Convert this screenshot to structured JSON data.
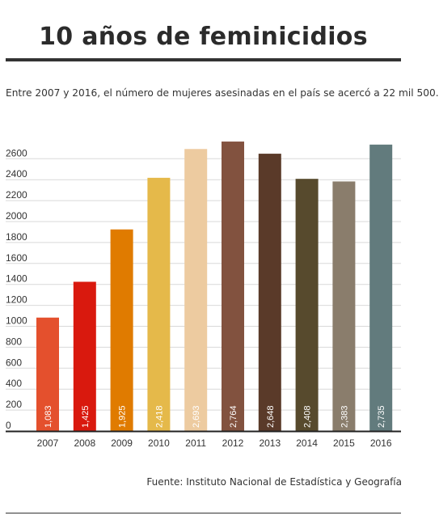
{
  "header": {
    "title": "10 años de feminicidios",
    "subtitle": "Entre 2007 y 2016, el número de mujeres asesinadas en el país se acercó a 22 mil 500."
  },
  "footer": {
    "source": "Fuente: Instituto Nacional de Estadística y Geografía"
  },
  "chart_data": {
    "type": "bar",
    "categories": [
      "2007",
      "2008",
      "2009",
      "2010",
      "2011",
      "2012",
      "2013",
      "2014",
      "2015",
      "2016"
    ],
    "values": [
      1083,
      1425,
      1925,
      2418,
      2693,
      2764,
      2648,
      2408,
      2383,
      2735
    ],
    "data_labels": [
      "1,083",
      "1,425",
      "1,925",
      "2,418",
      "2,693",
      "2,764",
      "2,648",
      "2,408",
      "2,383",
      "2,735"
    ],
    "colors": [
      "#e4502d",
      "#d9190e",
      "#e07b00",
      "#e5b94a",
      "#edcba0",
      "#82523f",
      "#5a3a29",
      "#574a2d",
      "#8a7d6c",
      "#627b7d"
    ],
    "yticks": [
      0,
      200,
      400,
      600,
      800,
      1000,
      1200,
      1400,
      1600,
      1800,
      2000,
      2200,
      2400,
      2600
    ],
    "ylim": [
      0,
      2800
    ],
    "grid": true,
    "title": "10 años de feminicidios",
    "xlabel": "",
    "ylabel": ""
  }
}
